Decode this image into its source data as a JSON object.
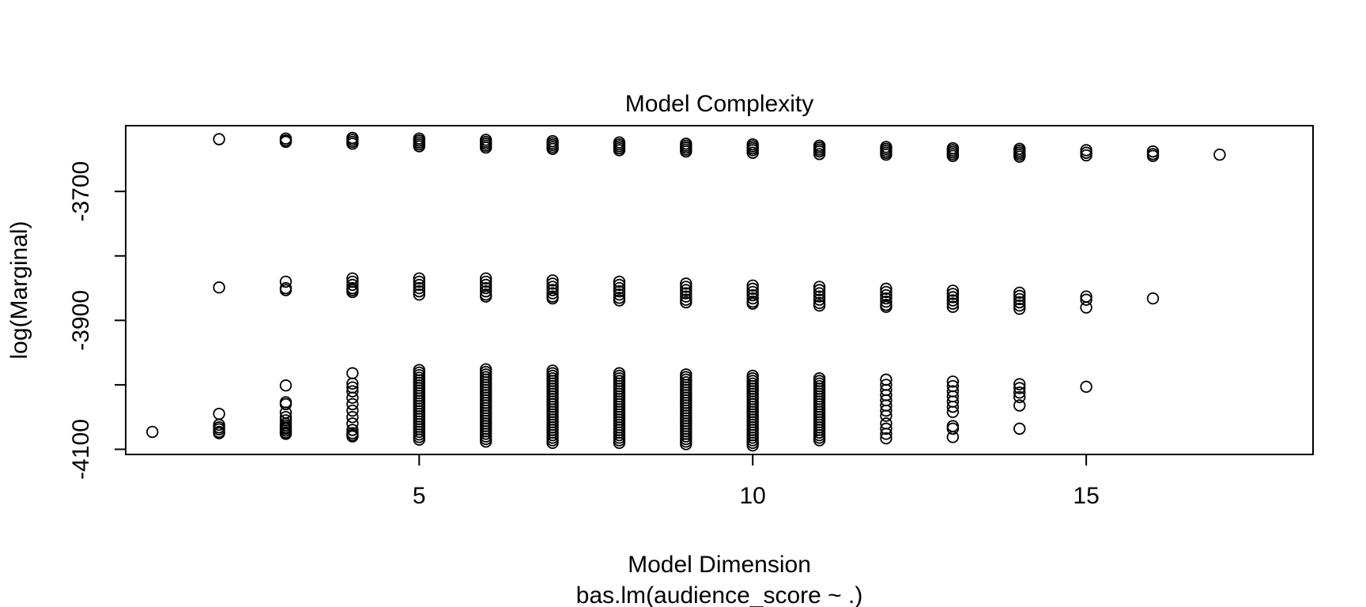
{
  "chart_data": {
    "type": "scatter",
    "title": "Model Complexity",
    "xlabel": "Model Dimension",
    "sublabel": "bas.lm(audience_score ~ .)",
    "ylabel": "log(Marginal)",
    "xlim": [
      0.6,
      18.4
    ],
    "ylim": [
      -4108,
      -3598
    ],
    "x_ticks": [
      5,
      10,
      15
    ],
    "y_ticks": [
      -3700,
      -3800,
      -3900,
      -4000,
      -4100
    ],
    "y_tick_labels": [
      "-3700",
      "-3900",
      "-4100"
    ],
    "grid": false,
    "legend": "none",
    "clusters": [
      {
        "x": 1,
        "values": [
          -4073
        ]
      },
      {
        "x": 2,
        "values": [
          -3619,
          -3849,
          -4045,
          -4062,
          -4066,
          -4069,
          -4073,
          -4075
        ]
      },
      {
        "x": 3,
        "values": [
          -3618,
          -3621,
          -3623,
          -3840,
          -3850,
          -3853,
          -4001,
          -4027,
          -4030,
          -4043,
          -4050,
          -4055,
          -4060,
          -4063,
          -4066,
          -4068,
          -4071,
          -4074,
          -4076
        ]
      },
      {
        "x": 4,
        "values": [
          -3617,
          -3620,
          -3623,
          -3626,
          -3835,
          -3840,
          -3845,
          -3850,
          -3853,
          -3856,
          -3982,
          -3998,
          -4004,
          -4010,
          -4020,
          -4030,
          -4040,
          -4050,
          -4060,
          -4070,
          -4075,
          -4078,
          -4080
        ]
      },
      {
        "x": 5,
        "min": -4085,
        "max": -3976,
        "step": 4,
        "extra": [
          -3618,
          -3621,
          -3624,
          -3627,
          -3630,
          -3835,
          -3840,
          -3845,
          -3850,
          -3855,
          -3860
        ]
      },
      {
        "x": 6,
        "min": -4088,
        "max": -3974,
        "step": 4,
        "extra": [
          -3620,
          -3623,
          -3626,
          -3629,
          -3632,
          -3835,
          -3840,
          -3845,
          -3850,
          -3855,
          -3860,
          -3863
        ]
      },
      {
        "x": 7,
        "min": -4090,
        "max": -3977,
        "step": 4,
        "extra": [
          -3622,
          -3625,
          -3628,
          -3631,
          -3634,
          -3838,
          -3843,
          -3848,
          -3853,
          -3858,
          -3863,
          -3866
        ]
      },
      {
        "x": 8,
        "min": -4090,
        "max": -3979,
        "step": 4,
        "extra": [
          -3624,
          -3627,
          -3630,
          -3633,
          -3636,
          -3840,
          -3845,
          -3850,
          -3855,
          -3860,
          -3865,
          -3869
        ]
      },
      {
        "x": 9,
        "min": -4092,
        "max": -3981,
        "step": 4,
        "extra": [
          -3626,
          -3629,
          -3632,
          -3635,
          -3638,
          -3843,
          -3848,
          -3853,
          -3858,
          -3863,
          -3868,
          -3872
        ]
      },
      {
        "x": 10,
        "min": -4094,
        "max": -3985,
        "step": 4,
        "extra": [
          -3627,
          -3630,
          -3633,
          -3636,
          -3640,
          -3846,
          -3851,
          -3856,
          -3861,
          -3866,
          -3871,
          -3874
        ]
      },
      {
        "x": 11,
        "min": -4086,
        "max": -3990,
        "step": 4,
        "extra": [
          -3629,
          -3632,
          -3635,
          -3638,
          -3642,
          -3848,
          -3853,
          -3858,
          -3863,
          -3868,
          -3873,
          -3877
        ]
      },
      {
        "x": 12,
        "values": [
          -3631,
          -3634,
          -3637,
          -3640,
          -3643,
          -3851,
          -3856,
          -3861,
          -3866,
          -3871,
          -3876,
          -3879,
          -3992,
          -4000,
          -4008,
          -4016,
          -4024,
          -4032,
          -4040,
          -4048,
          -4060,
          -4068,
          -4076,
          -4083
        ]
      },
      {
        "x": 13,
        "values": [
          -3633,
          -3636,
          -3639,
          -3642,
          -3645,
          -3854,
          -3859,
          -3864,
          -3869,
          -3874,
          -3879,
          -3995,
          -4002,
          -4010,
          -4018,
          -4026,
          -4034,
          -4042,
          -4064,
          -4068,
          -4081
        ]
      },
      {
        "x": 14,
        "values": [
          -3634,
          -3637,
          -3640,
          -3643,
          -3646,
          -3857,
          -3862,
          -3867,
          -3872,
          -3877,
          -3882,
          -3999,
          -4005,
          -4012,
          -4019,
          -4032,
          -4068
        ]
      },
      {
        "x": 15,
        "values": [
          -3636,
          -3640,
          -3644,
          -3863,
          -3868,
          -3880,
          -4003
        ]
      },
      {
        "x": 16,
        "values": [
          -3638,
          -3642,
          -3645,
          -3866
        ]
      },
      {
        "x": 17,
        "values": [
          -3643
        ]
      }
    ]
  }
}
